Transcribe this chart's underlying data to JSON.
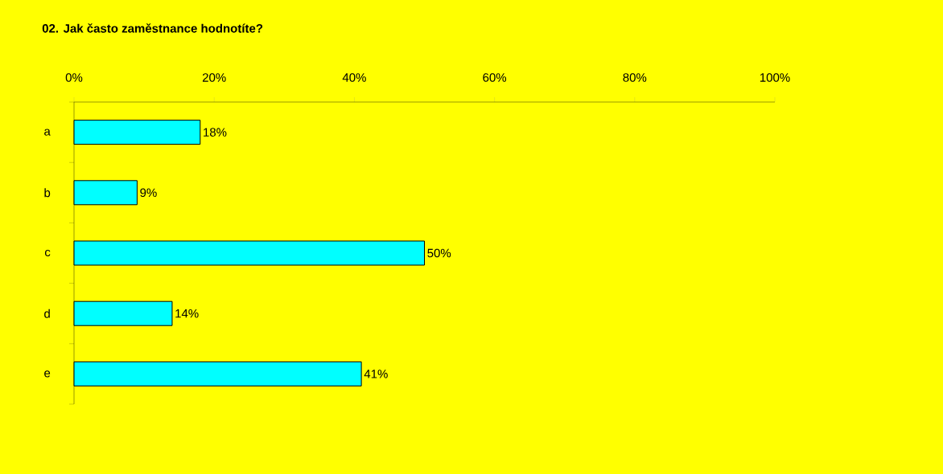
{
  "chart_data": {
    "type": "bar",
    "orientation": "horizontal",
    "title": "02. Jak často zaměstnance hodnotíte?",
    "categories": [
      "a",
      "b",
      "c",
      "d",
      "e"
    ],
    "values": [
      18,
      9,
      50,
      14,
      41
    ],
    "value_labels": [
      "18%",
      "9%",
      "50%",
      "14%",
      "41%"
    ],
    "color": "#00ffff",
    "xlim": [
      0,
      100
    ],
    "xticks": [
      {
        "value": 0,
        "label": "0%"
      },
      {
        "value": 20,
        "label": "20%"
      },
      {
        "value": 40,
        "label": "40%"
      },
      {
        "value": 60,
        "label": "60%"
      },
      {
        "value": 80,
        "label": "80%"
      },
      {
        "value": 100,
        "label": "100%"
      }
    ]
  }
}
